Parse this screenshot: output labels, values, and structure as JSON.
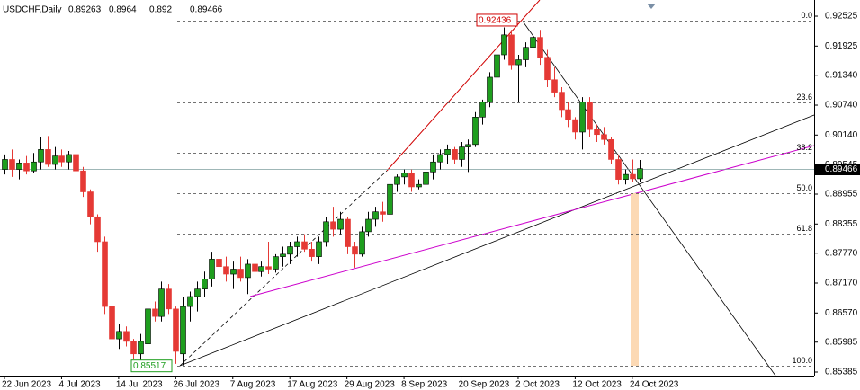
{
  "chart_data": {
    "type": "candlestick",
    "title": "USDCHF,Daily",
    "ohlc": [
      0.89263,
      0.8964,
      0.892,
      0.89466
    ],
    "categories": [
      "22 Jun 2023",
      null,
      null,
      null,
      null,
      null,
      null,
      null,
      "4 Jul 2023",
      null,
      null,
      null,
      null,
      null,
      null,
      null,
      "14 Jul 2023",
      null,
      null,
      null,
      null,
      null,
      null,
      null,
      "26 Jul 2023",
      null,
      null,
      null,
      null,
      null,
      null,
      null,
      "7 Aug 2023",
      null,
      null,
      null,
      null,
      null,
      null,
      null,
      "17 Aug 2023",
      null,
      null,
      null,
      null,
      null,
      null,
      null,
      "29 Aug 2023",
      null,
      null,
      null,
      null,
      null,
      null,
      null,
      "8 Sep 2023",
      null,
      null,
      null,
      null,
      null,
      null,
      null,
      "20 Sep 2023",
      null,
      null,
      null,
      null,
      null,
      null,
      null,
      "2 Oct 2023",
      null,
      null,
      null,
      null,
      null,
      null,
      null,
      "12 Oct 2023",
      null,
      null,
      null,
      null,
      null,
      null,
      null,
      "24 Oct 2023",
      null
    ],
    "open": [
      0.8945,
      0.8965,
      0.8945,
      0.8958,
      0.8942,
      0.896,
      0.8985,
      0.8955,
      0.8972,
      0.896,
      0.8975,
      0.8942,
      0.89,
      0.885,
      0.88,
      0.867,
      0.8605,
      0.862,
      0.86,
      0.8575,
      0.8595,
      0.8665,
      0.865,
      0.8705,
      0.8665,
      0.8575,
      0.867,
      0.869,
      0.8705,
      0.8725,
      0.8765,
      0.875,
      0.8735,
      0.8745,
      0.8728,
      0.8755,
      0.874,
      0.875,
      0.8745,
      0.877,
      0.8775,
      0.879,
      0.88,
      0.8785,
      0.877,
      0.88,
      0.884,
      0.8825,
      0.8845,
      0.879,
      0.8775,
      0.882,
      0.8845,
      0.886,
      0.8855,
      0.8915,
      0.893,
      0.8938,
      0.891,
      0.8915,
      0.894,
      0.896,
      0.8975,
      0.8985,
      0.8965,
      0.899,
      0.8995,
      0.905,
      0.908,
      0.913,
      0.9175,
      0.9215,
      0.9155,
      0.9165,
      0.919,
      0.921,
      0.917,
      0.9125,
      0.91,
      0.9065,
      0.9045,
      0.902,
      0.908,
      0.9025,
      0.9015,
      0.9005,
      0.8965,
      0.8925,
      0.8935,
      0.89263
    ],
    "high": [
      0.8975,
      0.8985,
      0.8965,
      0.8972,
      0.8978,
      0.901,
      0.9012,
      0.899,
      0.8985,
      0.8982,
      0.8985,
      0.895,
      0.8905,
      0.8855,
      0.881,
      0.868,
      0.8635,
      0.863,
      0.8605,
      0.8615,
      0.8675,
      0.868,
      0.872,
      0.8715,
      0.867,
      0.869,
      0.87,
      0.872,
      0.874,
      0.878,
      0.879,
      0.877,
      0.876,
      0.877,
      0.8765,
      0.877,
      0.876,
      0.88,
      0.8775,
      0.879,
      0.88,
      0.881,
      0.8815,
      0.88,
      0.881,
      0.885,
      0.887,
      0.886,
      0.885,
      0.88,
      0.883,
      0.886,
      0.887,
      0.888,
      0.892,
      0.8935,
      0.8945,
      0.8945,
      0.8925,
      0.895,
      0.8975,
      0.8985,
      0.8995,
      0.899,
      0.9,
      0.9005,
      0.906,
      0.9085,
      0.914,
      0.9185,
      0.923,
      0.9225,
      0.9175,
      0.92,
      0.92436,
      0.9225,
      0.9185,
      0.915,
      0.911,
      0.908,
      0.905,
      0.909,
      0.909,
      0.9035,
      0.903,
      0.901,
      0.8975,
      0.8945,
      0.8965,
      0.8964
    ],
    "low": [
      0.8935,
      0.893,
      0.8925,
      0.8935,
      0.8938,
      0.8945,
      0.895,
      0.8945,
      0.895,
      0.8945,
      0.8935,
      0.889,
      0.8835,
      0.878,
      0.8655,
      0.859,
      0.8585,
      0.859,
      0.8565,
      0.856,
      0.858,
      0.864,
      0.864,
      0.8655,
      0.8555,
      0.85517,
      0.864,
      0.866,
      0.869,
      0.871,
      0.874,
      0.872,
      0.8705,
      0.872,
      0.8695,
      0.873,
      0.873,
      0.8735,
      0.8738,
      0.875,
      0.8755,
      0.877,
      0.878,
      0.876,
      0.8755,
      0.879,
      0.881,
      0.8815,
      0.8775,
      0.8748,
      0.877,
      0.881,
      0.883,
      0.884,
      0.885,
      0.89,
      0.8915,
      0.89,
      0.8905,
      0.8905,
      0.8925,
      0.8945,
      0.8955,
      0.8955,
      0.895,
      0.894,
      0.899,
      0.9035,
      0.907,
      0.9115,
      0.9165,
      0.9145,
      0.908,
      0.915,
      0.9165,
      0.9155,
      0.911,
      0.909,
      0.905,
      0.903,
      0.9005,
      0.8985,
      0.901,
      0.9,
      0.8995,
      0.8955,
      0.8915,
      0.8915,
      0.892,
      0.892
    ],
    "close": [
      0.8965,
      0.8945,
      0.8958,
      0.8942,
      0.896,
      0.8985,
      0.8955,
      0.8972,
      0.896,
      0.8975,
      0.8942,
      0.89,
      0.885,
      0.88,
      0.867,
      0.8605,
      0.862,
      0.86,
      0.8575,
      0.86,
      0.8665,
      0.865,
      0.8705,
      0.8665,
      0.858,
      0.867,
      0.869,
      0.8705,
      0.8725,
      0.8765,
      0.875,
      0.8735,
      0.8745,
      0.8728,
      0.8755,
      0.874,
      0.875,
      0.8745,
      0.877,
      0.8775,
      0.879,
      0.88,
      0.8785,
      0.877,
      0.88,
      0.884,
      0.8825,
      0.8845,
      0.879,
      0.8775,
      0.882,
      0.8845,
      0.886,
      0.8855,
      0.8915,
      0.893,
      0.8938,
      0.891,
      0.8915,
      0.894,
      0.896,
      0.8975,
      0.8985,
      0.8965,
      0.899,
      0.8995,
      0.905,
      0.908,
      0.913,
      0.9175,
      0.9215,
      0.9155,
      0.9165,
      0.919,
      0.921,
      0.917,
      0.9125,
      0.91,
      0.9065,
      0.9045,
      0.902,
      0.908,
      0.9025,
      0.9015,
      0.9005,
      0.8965,
      0.8925,
      0.8935,
      0.89263,
      0.89466
    ],
    "up_color": "#1e9e1e",
    "down_color": "#e53935",
    "ylim": [
      0.85313,
      0.9285
    ],
    "yticks": [
      0.92525,
      0.91925,
      {
        "value": 0.9134,
        "label": "0.91340"
      },
      {
        "value": 0.9074,
        "label": "0.90740"
      },
      {
        "value": 0.9014,
        "label": "0.90140"
      },
      0.89545,
      0.88955,
      0.88355,
      {
        "value": 0.8777,
        "label": "0.87770"
      },
      {
        "value": 0.8717,
        "label": "0.87170"
      },
      {
        "value": 0.8657,
        "label": "0.86570"
      },
      0.85985,
      0.85385
    ],
    "last_price": 0.89466,
    "fib_high": 0.92436,
    "fib_low": 0.85517,
    "fib_levels": [
      {
        "value": 0,
        "label": "0.0"
      },
      23.6,
      38.2,
      {
        "value": 50,
        "label": "50.0"
      },
      61.8,
      {
        "value": 100,
        "label": "100.0"
      }
    ]
  }
}
